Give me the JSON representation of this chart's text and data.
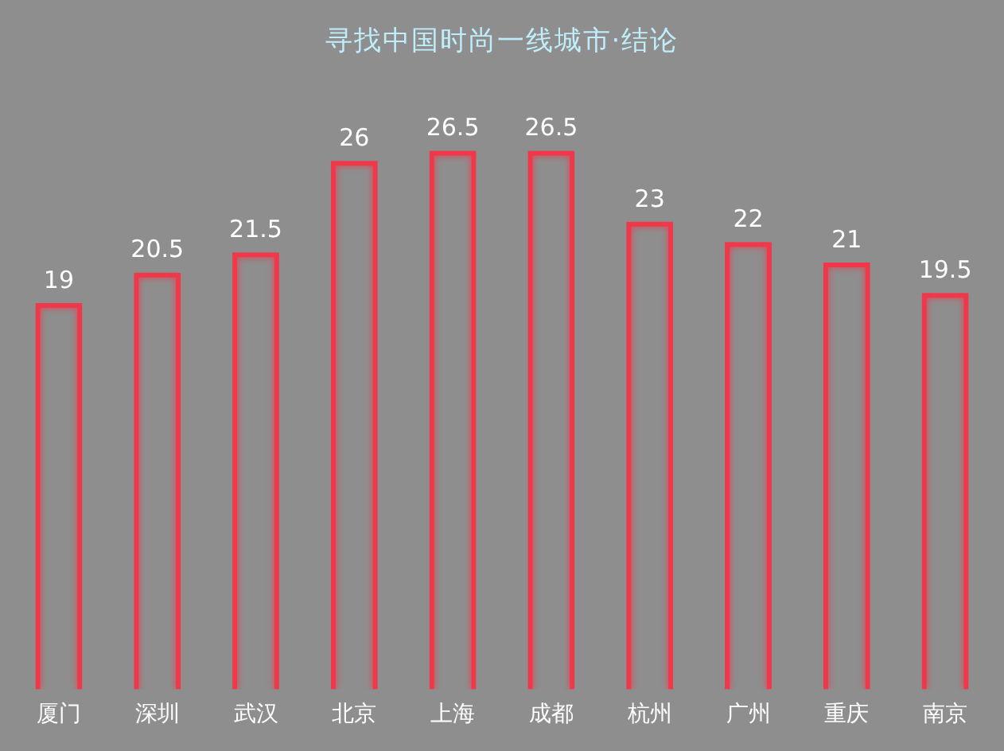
{
  "chart_data": {
    "type": "bar",
    "title": "寻找中国时尚一线城市·结论",
    "categories": [
      "厦门",
      "深圳",
      "武汉",
      "北京",
      "上海",
      "成都",
      "杭州",
      "广州",
      "重庆",
      "南京"
    ],
    "values": [
      19,
      20.5,
      21.5,
      26,
      26.5,
      26.5,
      23,
      22,
      21,
      19.5
    ],
    "color": "#f0384a",
    "tick_labels": "x",
    "grid": false,
    "legend": false,
    "data_labels": true
  }
}
